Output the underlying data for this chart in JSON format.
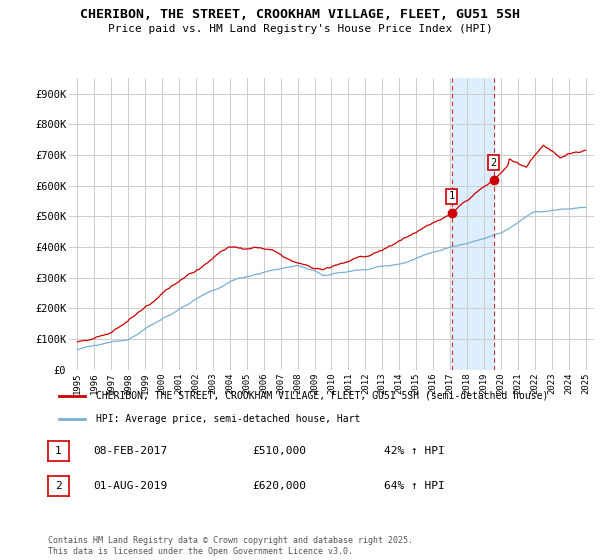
{
  "title": "CHERIBON, THE STREET, CROOKHAM VILLAGE, FLEET, GU51 5SH",
  "subtitle": "Price paid vs. HM Land Registry's House Price Index (HPI)",
  "ylim": [
    0,
    950000
  ],
  "yticks": [
    0,
    100000,
    200000,
    300000,
    400000,
    500000,
    600000,
    700000,
    800000,
    900000
  ],
  "ytick_labels": [
    "£0",
    "£100K",
    "£200K",
    "£300K",
    "£400K",
    "£500K",
    "£600K",
    "£700K",
    "£800K",
    "£900K"
  ],
  "xlim_start": 1994.5,
  "xlim_end": 2025.5,
  "xtick_years": [
    1995,
    1996,
    1997,
    1998,
    1999,
    2000,
    2001,
    2002,
    2003,
    2004,
    2005,
    2006,
    2007,
    2008,
    2009,
    2010,
    2011,
    2012,
    2013,
    2014,
    2015,
    2016,
    2017,
    2018,
    2019,
    2020,
    2021,
    2022,
    2023,
    2024,
    2025
  ],
  "hpi_color": "#7ab0d4",
  "price_color": "#cc0000",
  "shade_color": "#ddeeff",
  "marker1_date": 2017.1,
  "marker1_price": 510000,
  "marker1_label": "08-FEB-2017",
  "marker1_value": "£510,000",
  "marker1_pct": "42% ↑ HPI",
  "marker2_date": 2019.58,
  "marker2_price": 620000,
  "marker2_label": "01-AUG-2019",
  "marker2_value": "£620,000",
  "marker2_pct": "64% ↑ HPI",
  "legend1_label": "CHERIBON, THE STREET, CROOKHAM VILLAGE, FLEET, GU51 5SH (semi-detached house)",
  "legend2_label": "HPI: Average price, semi-detached house, Hart",
  "footer": "Contains HM Land Registry data © Crown copyright and database right 2025.\nThis data is licensed under the Open Government Licence v3.0.",
  "background_color": "#ffffff",
  "grid_color": "#cccccc"
}
